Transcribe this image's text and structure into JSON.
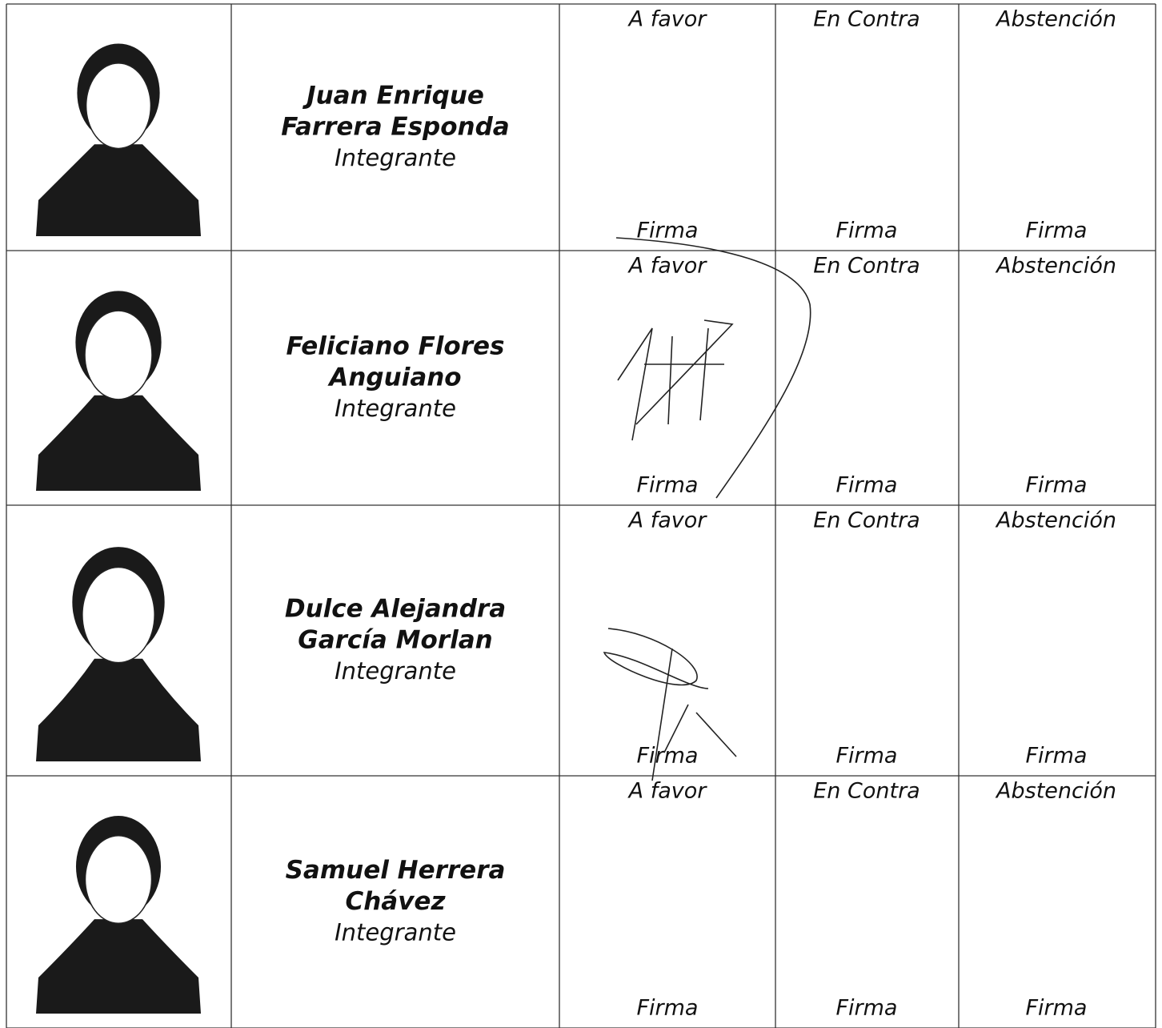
{
  "rows": [
    {
      "name": [
        "Juan Enrique",
        "Farrera Esponda"
      ],
      "role": "Integrante",
      "votes": [
        {
          "label": "A favor",
          "sign": "Firma"
        },
        {
          "label": "En Contra",
          "sign": "Firma"
        },
        {
          "label": "Abstención",
          "sign": "Firma"
        }
      ]
    },
    {
      "name": [
        "Feliciano Flores",
        "Anguiano"
      ],
      "role": "Integrante",
      "votes": [
        {
          "label": "A favor",
          "sign": "Firma"
        },
        {
          "label": "En Contra",
          "sign": "Firma"
        },
        {
          "label": "Abstención",
          "sign": "Firma"
        }
      ]
    },
    {
      "name": [
        "Dulce Alejandra",
        "García Morlan"
      ],
      "role": "Integrante",
      "votes": [
        {
          "label": "A favor",
          "sign": "Firma"
        },
        {
          "label": "En Contra",
          "sign": "Firma"
        },
        {
          "label": "Abstención",
          "sign": "Firma"
        }
      ]
    },
    {
      "name": [
        "Samuel Herrera",
        "Chávez"
      ],
      "role": "Integrante",
      "votes": [
        {
          "label": "A favor",
          "sign": "Firma"
        },
        {
          "label": "En Contra",
          "sign": "Firma"
        },
        {
          "label": "Abstención",
          "sign": "Firma"
        }
      ]
    }
  ]
}
